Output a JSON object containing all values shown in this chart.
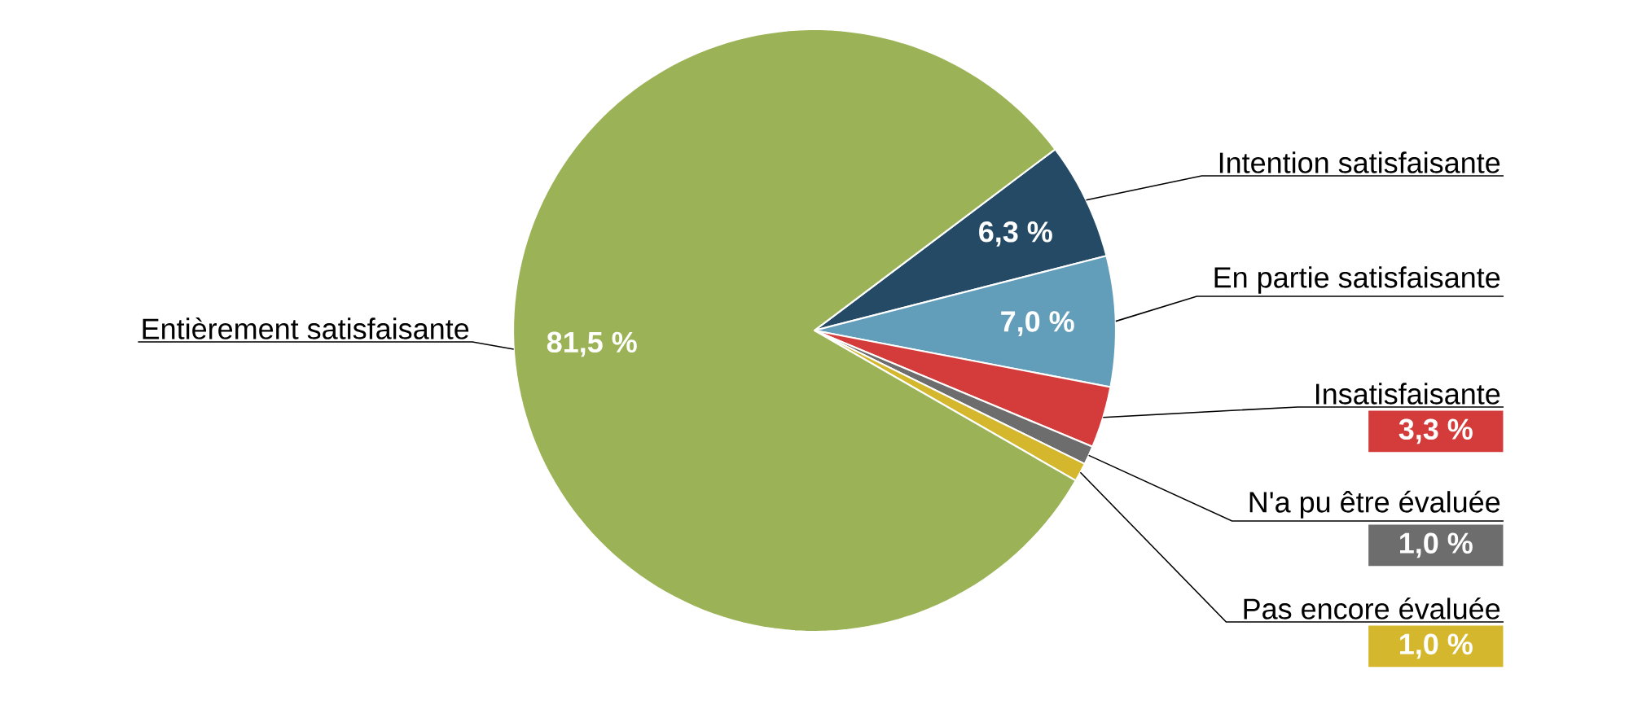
{
  "chart_data": {
    "type": "pie",
    "categories": [
      "Entièrement satisfaisante",
      "Intention satisfaisante",
      "En partie satisfaisante",
      "Insatisfaisante",
      "N'a pu être évaluée",
      "Pas encore évaluée"
    ],
    "values": [
      81.5,
      6.3,
      7.0,
      3.3,
      1.0,
      1.0
    ],
    "value_labels": [
      "81,5 %",
      "6,3 %",
      "7,0 %",
      "3,3 %",
      "1,0 %",
      "1,0 %"
    ],
    "colors": [
      "#9bb356",
      "#244a66",
      "#629dba",
      "#d43c3c",
      "#6d6d6d",
      "#d4b72c"
    ]
  }
}
